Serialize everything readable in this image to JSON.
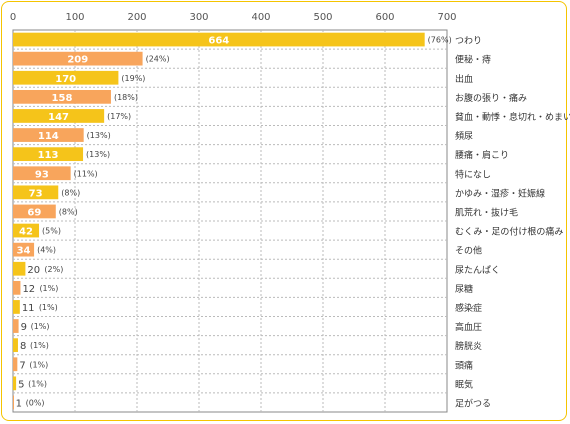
{
  "chart_data": {
    "type": "bar",
    "orientation": "horizontal",
    "xlim": [
      0,
      700
    ],
    "x_ticks": [
      0,
      100,
      200,
      300,
      400,
      500,
      600,
      700
    ],
    "grid": true,
    "categories": [
      "つわり",
      "便秘・痔",
      "出血",
      "お腹の張り・痛み",
      "貧血・動悸・息切れ・めまい",
      "頻尿",
      "腰痛・肩こり",
      "特になし",
      "かゆみ・湿疹・妊娠線",
      "肌荒れ・抜け毛",
      "むくみ・足の付け根の痛み",
      "その他",
      "尿たんぱく",
      "尿糖",
      "感染症",
      "高血圧",
      "膀胱炎",
      "頭痛",
      "眠気",
      "足がつる"
    ],
    "values": [
      664,
      209,
      170,
      158,
      147,
      114,
      113,
      93,
      73,
      69,
      42,
      34,
      20,
      12,
      11,
      9,
      8,
      7,
      5,
      1
    ],
    "percent_labels": [
      "(76%)",
      "(24%)",
      "(19%)",
      "(18%)",
      "(17%)",
      "(13%)",
      "(13%)",
      "(11%)",
      "(8%)",
      "(8%)",
      "(5%)",
      "(4%)",
      "(2%)",
      "(1%)",
      "(1%)",
      "(1%)",
      "(1%)",
      "(1%)",
      "(1%)",
      "(0%)"
    ],
    "colors": [
      "#f5c41a",
      "#f8a55c",
      "#f5c41a",
      "#f8a55c",
      "#f5c41a",
      "#f8a55c",
      "#f5c41a",
      "#f8a55c",
      "#f5c41a",
      "#f8a55c",
      "#f5c41a",
      "#f8a55c",
      "#f5c41a",
      "#f8a55c",
      "#f5c41a",
      "#f8a55c",
      "#f5c41a",
      "#f8a55c",
      "#f5c41a",
      "#f8a55c"
    ],
    "title": "",
    "xlabel": "",
    "ylabel": ""
  },
  "colors": {
    "frame": "#f5c400",
    "grid": "#bbbbbb",
    "plot_border": "#888888"
  }
}
